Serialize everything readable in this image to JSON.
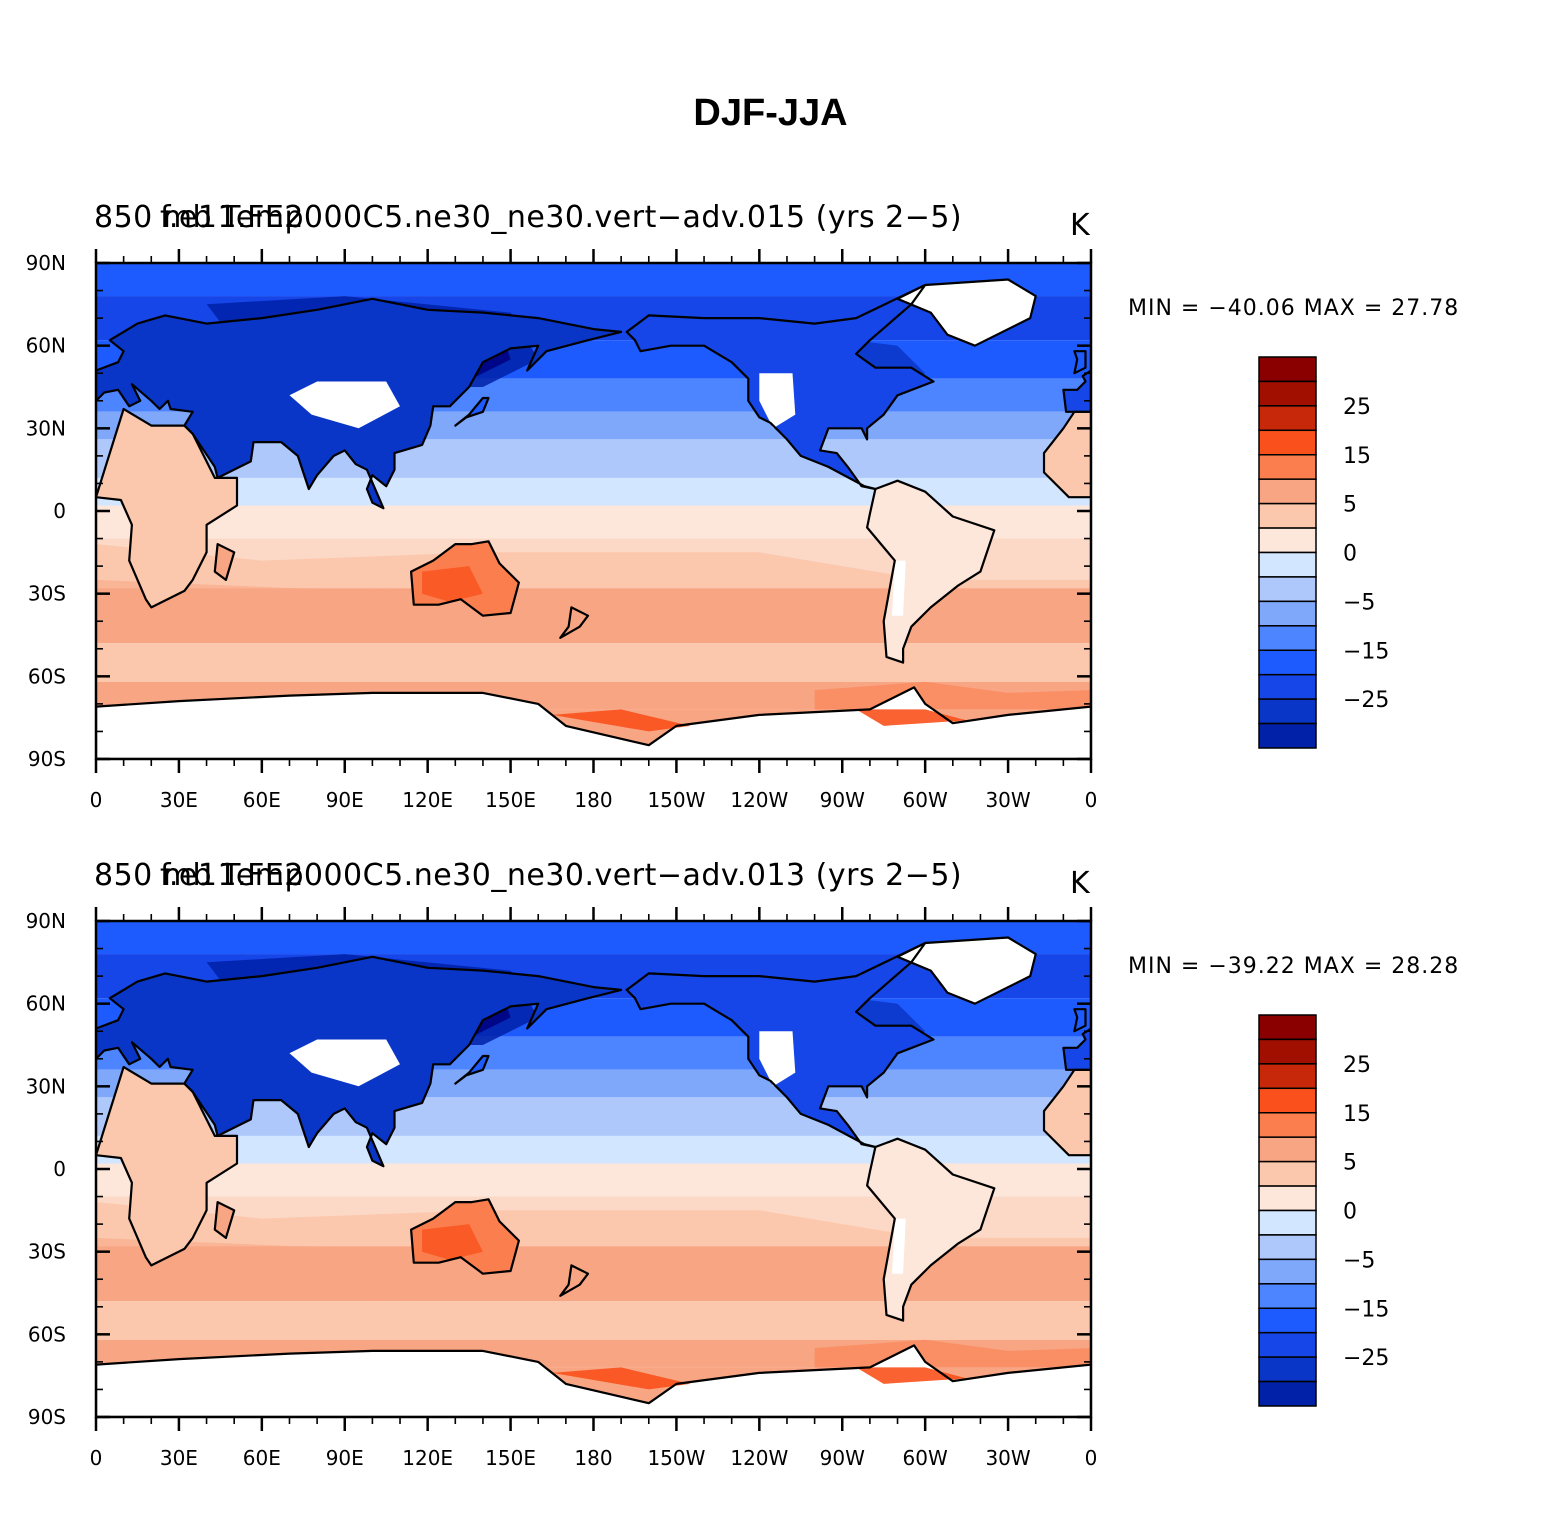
{
  "title": "DJF-JJA",
  "colors": {
    "levels": [
      "#000080",
      "#0021a8",
      "#0a36c8",
      "#1646e8",
      "#1e5bff",
      "#4d84ff",
      "#7fa8fb",
      "#aec8fb",
      "#d3e6ff",
      "#fde6da",
      "#fbc8ad",
      "#f8a584",
      "#fb7e4e",
      "#fa511c",
      "#c8280a",
      "#a00f00",
      "#8a0000"
    ],
    "ocean_mid": "#d3e6ff",
    "land_missing": "#ffffff",
    "coast": "#000000"
  },
  "axes": {
    "lat_ticks": [
      "90N",
      "60N",
      "30N",
      "0",
      "30S",
      "60S",
      "90S"
    ],
    "lon_ticks": [
      "0",
      "30E",
      "60E",
      "90E",
      "120E",
      "150E",
      "180",
      "150W",
      "120W",
      "90W",
      "60W",
      "30W",
      "0"
    ]
  },
  "colorbar_labels": [
    "25",
    "15",
    "5",
    "0",
    "−5",
    "−15",
    "−25"
  ],
  "panels": [
    {
      "left_title": "850 mb Temp",
      "center_title": "f.e11.FE2000C5.ne30_ne30.vert−adv.015 (yrs 2−5)",
      "units": "K",
      "min_max": "MIN = −40.06  MAX =   27.78"
    },
    {
      "left_title": "850 mb Temp",
      "center_title": "f.e11.FE2000C5.ne30_ne30.vert−adv.013 (yrs 2−5)",
      "units": "K",
      "min_max": "MIN = −39.22  MAX =   28.28"
    }
  ]
}
